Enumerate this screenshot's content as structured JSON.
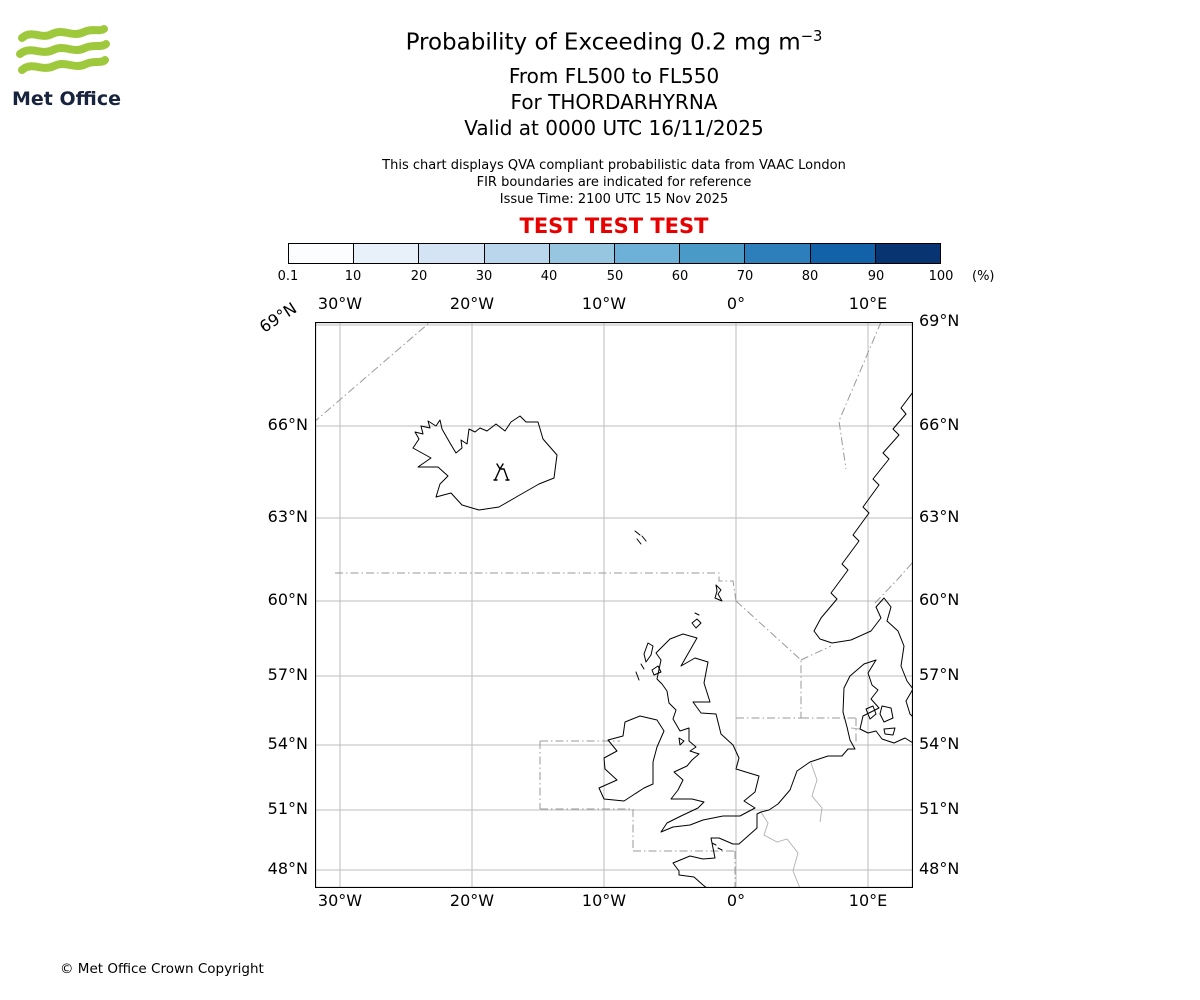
{
  "logo": {
    "brand": "Met Office"
  },
  "header": {
    "title_prefix": "Probability of Exceeding 0.2 mg m",
    "title_superscript": "−3",
    "subtitle_levels": "From FL500 to FL550",
    "subtitle_volcano": "For THORDARHYRNA",
    "subtitle_valid": "Valid at 0000 UTC 16/11/2025",
    "note_line1": "This chart displays QVA compliant probabilistic data from VAAC London",
    "note_line2": "FIR boundaries are indicated for reference",
    "note_line3": "Issue Time: 2100 UTC 15 Nov 2025",
    "test_banner": "TEST TEST TEST"
  },
  "colorbar": {
    "unit": "(%)",
    "tick_labels": [
      "0.1",
      "10",
      "20",
      "30",
      "40",
      "50",
      "60",
      "70",
      "80",
      "90",
      "100"
    ],
    "colors": [
      "#fbfdff",
      "#e8f1fa",
      "#d4e4f4",
      "#b9d6ec",
      "#97c6e1",
      "#6db0d8",
      "#4a9ac8",
      "#2c7fba",
      "#1262a9",
      "#083572"
    ]
  },
  "map": {
    "lon_labels": [
      "30°W",
      "20°W",
      "10°W",
      "0°",
      "10°E"
    ],
    "lat_labels": [
      "69°N",
      "66°N",
      "63°N",
      "60°N",
      "57°N",
      "54°N",
      "51°N",
      "48°N"
    ]
  },
  "colors": {
    "test_banner": "#e60000",
    "logo_green": "#9fc93c",
    "logo_text": "#18243d",
    "coastline": "#000000",
    "fir_boundary": "#999999",
    "graticule": "#bdbdbd"
  },
  "footer": {
    "copyright": "© Met Office Crown Copyright"
  }
}
